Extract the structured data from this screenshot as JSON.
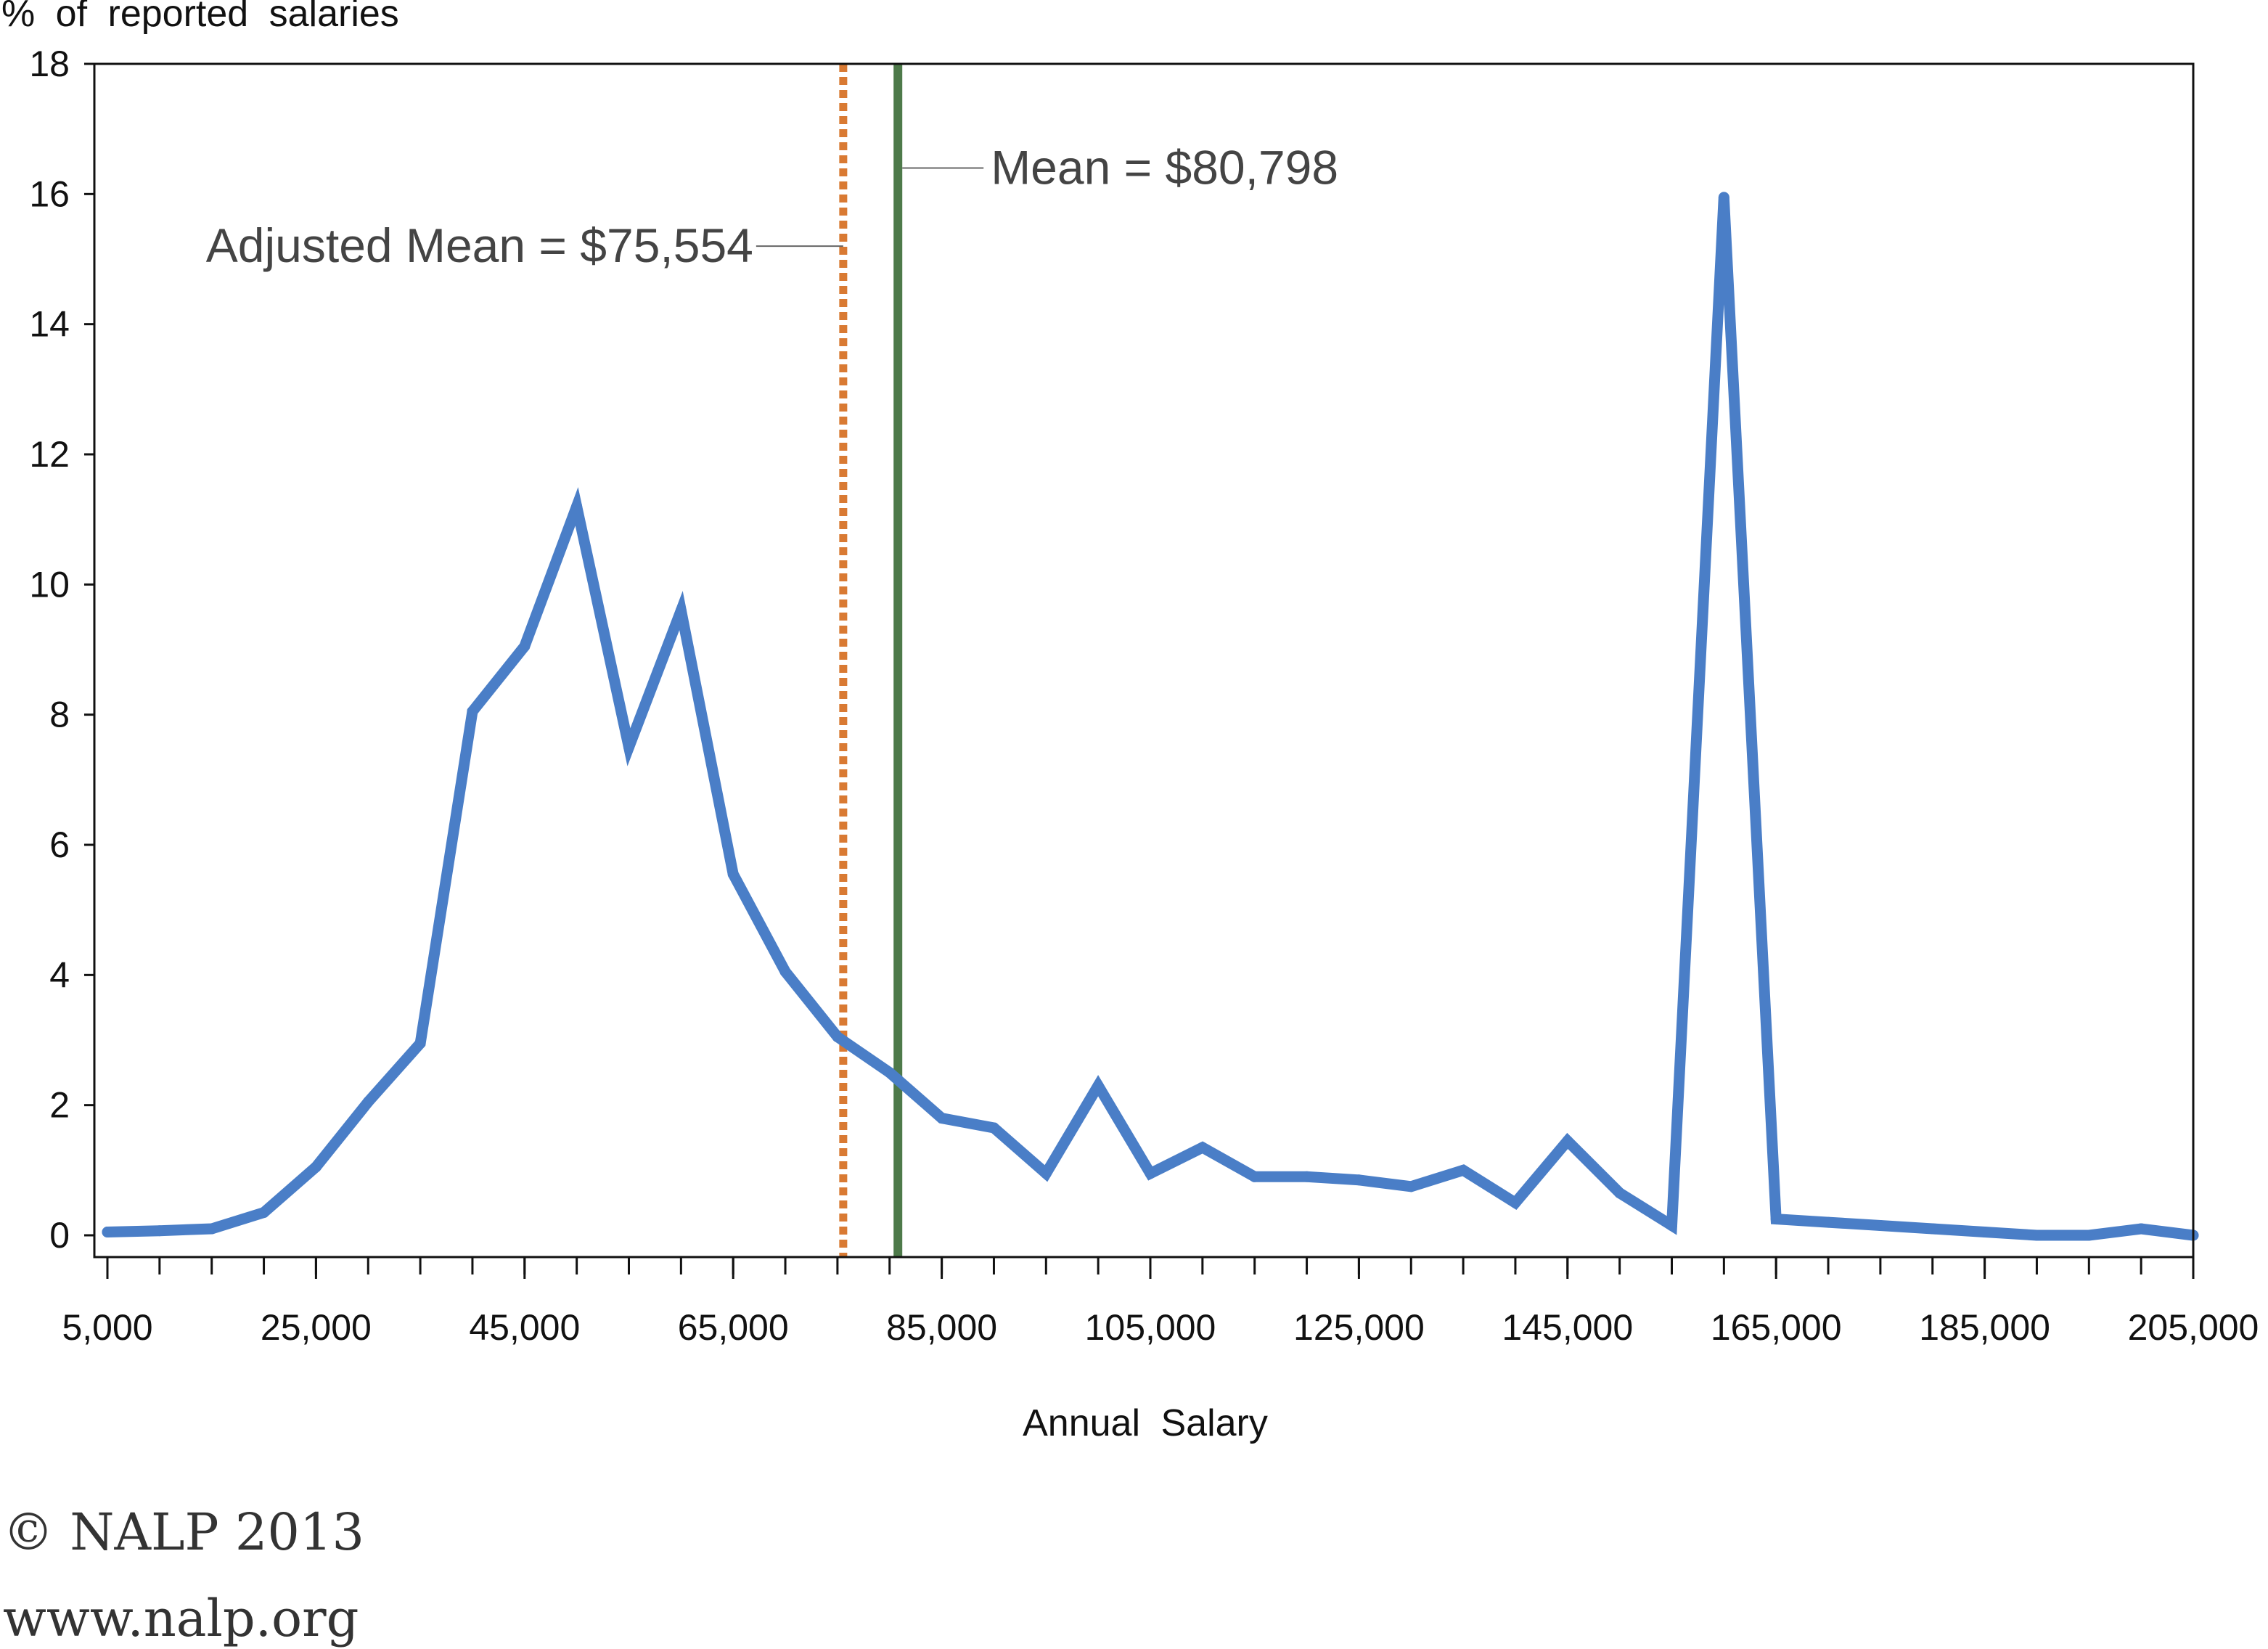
{
  "chart_data": {
    "type": "line",
    "ylabel": "% of reported salaries",
    "xlabel": "Annual Salary",
    "xlim": [
      5000,
      205000
    ],
    "ylim": [
      0,
      18
    ],
    "xticks": [
      "5,000",
      "25,000",
      "45,000",
      "65,000",
      "85,000",
      "105,000",
      "125,000",
      "145,000",
      "165,000",
      "185,000",
      "205,000"
    ],
    "xtick_values": [
      5000,
      25000,
      45000,
      65000,
      85000,
      105000,
      125000,
      145000,
      165000,
      185000,
      205000
    ],
    "yticks": [
      "0",
      "2",
      "4",
      "6",
      "8",
      "10",
      "12",
      "14",
      "16",
      "18"
    ],
    "ytick_values": [
      0,
      2,
      4,
      6,
      8,
      10,
      12,
      14,
      16,
      18
    ],
    "grid": false,
    "series": [
      {
        "color": "#4a7ec7",
        "x": [
          5000,
          10000,
          15000,
          20000,
          25000,
          30000,
          35000,
          40000,
          45000,
          50000,
          55000,
          60000,
          65000,
          70000,
          75000,
          80000,
          85000,
          90000,
          95000,
          100000,
          105000,
          110000,
          115000,
          120000,
          125000,
          130000,
          135000,
          140000,
          145000,
          150000,
          155000,
          160000,
          165000,
          170000,
          175000,
          180000,
          185000,
          190000,
          195000,
          200000,
          205000
        ],
        "values": [
          0.05,
          0.07,
          0.1,
          0.35,
          1.05,
          2.05,
          2.95,
          8.05,
          9.05,
          11.2,
          7.5,
          9.6,
          5.55,
          4.05,
          3.05,
          2.5,
          1.8,
          1.65,
          0.95,
          2.3,
          0.95,
          1.35,
          0.9,
          0.9,
          0.85,
          0.75,
          1.0,
          0.5,
          1.45,
          0.65,
          0.15,
          15.95,
          0.25,
          0.2,
          0.15,
          0.1,
          0.05,
          0.0,
          0.0,
          0.1,
          0.0
        ]
      }
    ],
    "reference_lines": [
      {
        "label": "Adjusted Mean = $75,554",
        "x": 75554,
        "color": "#d97a33",
        "style": "dotted",
        "label_y": 15.2,
        "label_side": "left"
      },
      {
        "label": "Mean = $80,798",
        "x": 80798,
        "color": "#4e7a4a",
        "style": "solid",
        "label_y": 16.4,
        "label_side": "right"
      }
    ]
  },
  "credits": {
    "copyright": "© NALP 2013",
    "website": "www.nalp.org"
  }
}
